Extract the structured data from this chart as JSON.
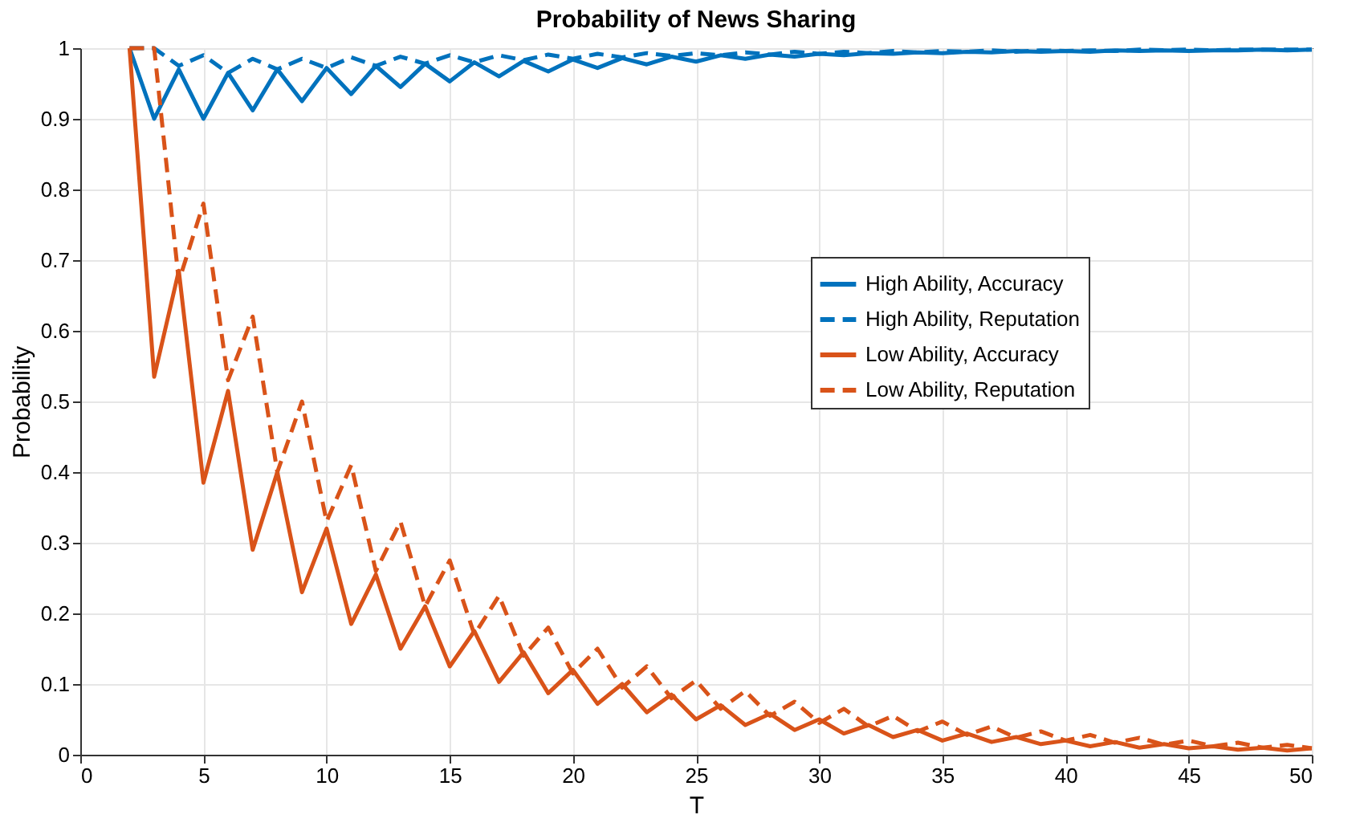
{
  "chart_data": {
    "type": "line",
    "title": "Probability of News Sharing",
    "xlabel": "T",
    "ylabel": "Probability",
    "x": [
      2,
      3,
      4,
      5,
      6,
      7,
      8,
      9,
      10,
      11,
      12,
      13,
      14,
      15,
      16,
      17,
      18,
      19,
      20,
      21,
      22,
      23,
      24,
      25,
      26,
      27,
      28,
      29,
      30,
      31,
      32,
      33,
      34,
      35,
      36,
      37,
      38,
      39,
      40,
      41,
      42,
      43,
      44,
      45,
      46,
      47,
      48,
      49,
      50
    ],
    "series": [
      {
        "name": "High Ability, Accuracy",
        "color": "#0072bd",
        "line_style": "solid",
        "values": [
          1,
          0.9,
          0.97,
          0.9,
          0.965,
          0.912,
          0.97,
          0.925,
          0.972,
          0.935,
          0.975,
          0.945,
          0.978,
          0.953,
          0.98,
          0.96,
          0.982,
          0.967,
          0.984,
          0.972,
          0.986,
          0.977,
          0.988,
          0.981,
          0.99,
          0.985,
          0.991,
          0.988,
          0.992,
          0.99,
          0.993,
          0.992,
          0.994,
          0.993,
          0.995,
          0.994,
          0.996,
          0.995,
          0.996,
          0.995,
          0.997,
          0.996,
          0.997,
          0.996,
          0.997,
          0.997,
          0.998,
          0.997,
          0.998
        ]
      },
      {
        "name": "High Ability, Reputation",
        "color": "#0072bd",
        "line_style": "dashed",
        "values": [
          1,
          1,
          0.975,
          0.99,
          0.965,
          0.985,
          0.97,
          0.985,
          0.972,
          0.987,
          0.975,
          0.988,
          0.978,
          0.99,
          0.98,
          0.99,
          0.983,
          0.991,
          0.985,
          0.992,
          0.987,
          0.993,
          0.989,
          0.993,
          0.99,
          0.994,
          0.991,
          0.995,
          0.992,
          0.995,
          0.993,
          0.996,
          0.994,
          0.996,
          0.995,
          0.997,
          0.995,
          0.997,
          0.996,
          0.997,
          0.996,
          0.998,
          0.997,
          0.998,
          0.997,
          0.998,
          0.998,
          0.998,
          0.998
        ]
      },
      {
        "name": "Low Ability, Accuracy",
        "color": "#d95319",
        "line_style": "solid",
        "values": [
          1,
          0.535,
          0.685,
          0.385,
          0.515,
          0.29,
          0.4,
          0.23,
          0.32,
          0.185,
          0.255,
          0.15,
          0.21,
          0.125,
          0.175,
          0.103,
          0.145,
          0.087,
          0.12,
          0.072,
          0.1,
          0.06,
          0.085,
          0.05,
          0.07,
          0.042,
          0.058,
          0.035,
          0.05,
          0.03,
          0.042,
          0.025,
          0.035,
          0.02,
          0.03,
          0.018,
          0.025,
          0.015,
          0.02,
          0.012,
          0.018,
          0.01,
          0.015,
          0.009,
          0.012,
          0.007,
          0.01,
          0.006,
          0.009
        ]
      },
      {
        "name": "Low Ability, Reputation",
        "color": "#d95319",
        "line_style": "dashed",
        "values": [
          1,
          1,
          0.67,
          0.78,
          0.53,
          0.62,
          0.4,
          0.5,
          0.33,
          0.41,
          0.26,
          0.33,
          0.21,
          0.275,
          0.17,
          0.225,
          0.14,
          0.18,
          0.115,
          0.15,
          0.095,
          0.125,
          0.08,
          0.105,
          0.065,
          0.09,
          0.055,
          0.075,
          0.045,
          0.065,
          0.04,
          0.055,
          0.033,
          0.047,
          0.028,
          0.04,
          0.024,
          0.033,
          0.02,
          0.028,
          0.017,
          0.024,
          0.014,
          0.02,
          0.012,
          0.017,
          0.01,
          0.014,
          0.009
        ]
      }
    ],
    "xlim": [
      0,
      50
    ],
    "xticks": [
      0,
      5,
      10,
      15,
      20,
      25,
      30,
      35,
      40,
      45,
      50
    ],
    "ylim": [
      0,
      1
    ],
    "yticks": [
      0,
      0.1,
      0.2,
      0.3,
      0.4,
      0.5,
      0.6,
      0.7,
      0.8,
      0.9,
      1
    ],
    "grid": true,
    "legend": "right",
    "marker": "none"
  }
}
